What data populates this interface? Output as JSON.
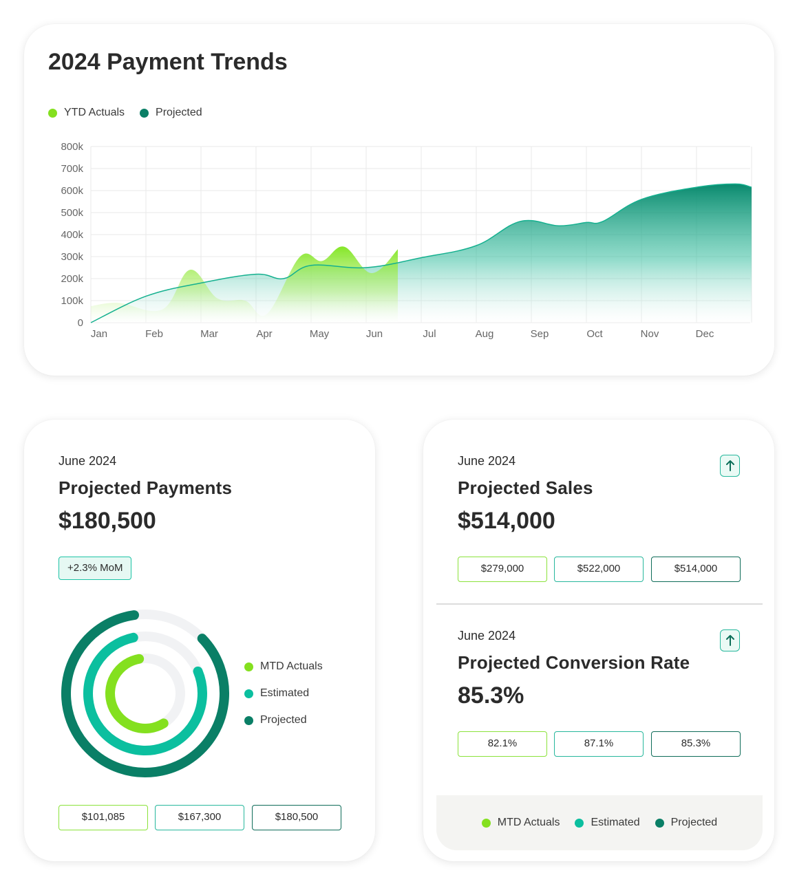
{
  "trend": {
    "title": "2024 Payment Trends",
    "legend": [
      "YTD Actuals",
      "Projected"
    ]
  },
  "chart_data": {
    "type": "area",
    "title": "2024 Payment Trends",
    "categories": [
      "Jan",
      "Feb",
      "Mar",
      "Apr",
      "May",
      "Jun",
      "Jul",
      "Aug",
      "Sep",
      "Oct",
      "Nov",
      "Dec"
    ],
    "y_ticks": [
      "0",
      "100k",
      "200k",
      "300k",
      "400k",
      "500k",
      "600k",
      "700k",
      "800k"
    ],
    "ylim": [
      0,
      800000
    ],
    "grid": true,
    "legend_position": "top-left",
    "series": [
      {
        "name": "YTD Actuals",
        "color": "#84e01f",
        "points": [
          [
            0,
            75000
          ],
          [
            0.5,
            90000
          ],
          [
            1.3,
            60000
          ],
          [
            1.8,
            240000
          ],
          [
            2.3,
            110000
          ],
          [
            2.8,
            100000
          ],
          [
            3.2,
            40000
          ],
          [
            3.8,
            300000
          ],
          [
            4.2,
            280000
          ],
          [
            4.6,
            345000
          ],
          [
            5.1,
            225000
          ],
          [
            5.6,
            340000
          ]
        ]
      },
      {
        "name": "Projected",
        "color": "#0a8f72",
        "points": [
          [
            0,
            0
          ],
          [
            1,
            120000
          ],
          [
            2,
            180000
          ],
          [
            3,
            220000
          ],
          [
            3.5,
            200000
          ],
          [
            4,
            260000
          ],
          [
            5,
            250000
          ],
          [
            6,
            295000
          ],
          [
            7,
            350000
          ],
          [
            7.8,
            460000
          ],
          [
            8.5,
            440000
          ],
          [
            9,
            455000
          ],
          [
            9.3,
            460000
          ],
          [
            10,
            560000
          ],
          [
            11,
            615000
          ],
          [
            11.7,
            630000
          ],
          [
            12,
            615000
          ]
        ]
      }
    ]
  },
  "payments": {
    "date": "June 2024",
    "title": "Projected Payments",
    "value": "$180,500",
    "badge": "+2.3% MoM",
    "legend": [
      "MTD Actuals",
      "Estimated",
      "Projected"
    ],
    "ring_fractions": {
      "mtd_actuals": 0.56,
      "estimated": 0.78,
      "projected": 0.85
    },
    "pills": [
      "$101,085",
      "$167,300",
      "$180,500"
    ]
  },
  "sales": {
    "date": "June 2024",
    "title": "Projected Sales",
    "value": "$514,000",
    "pills": [
      "$279,000",
      "$522,000",
      "$514,000"
    ]
  },
  "conversion": {
    "date": "June 2024",
    "title": "Projected Conversion Rate",
    "value": "85.3%",
    "pills": [
      "82.1%",
      "87.1%",
      "85.3%"
    ]
  },
  "footer_legend": [
    "MTD Actuals",
    "Estimated",
    "Projected"
  ],
  "icons": {
    "trend_up": "arrow-up-icon"
  }
}
